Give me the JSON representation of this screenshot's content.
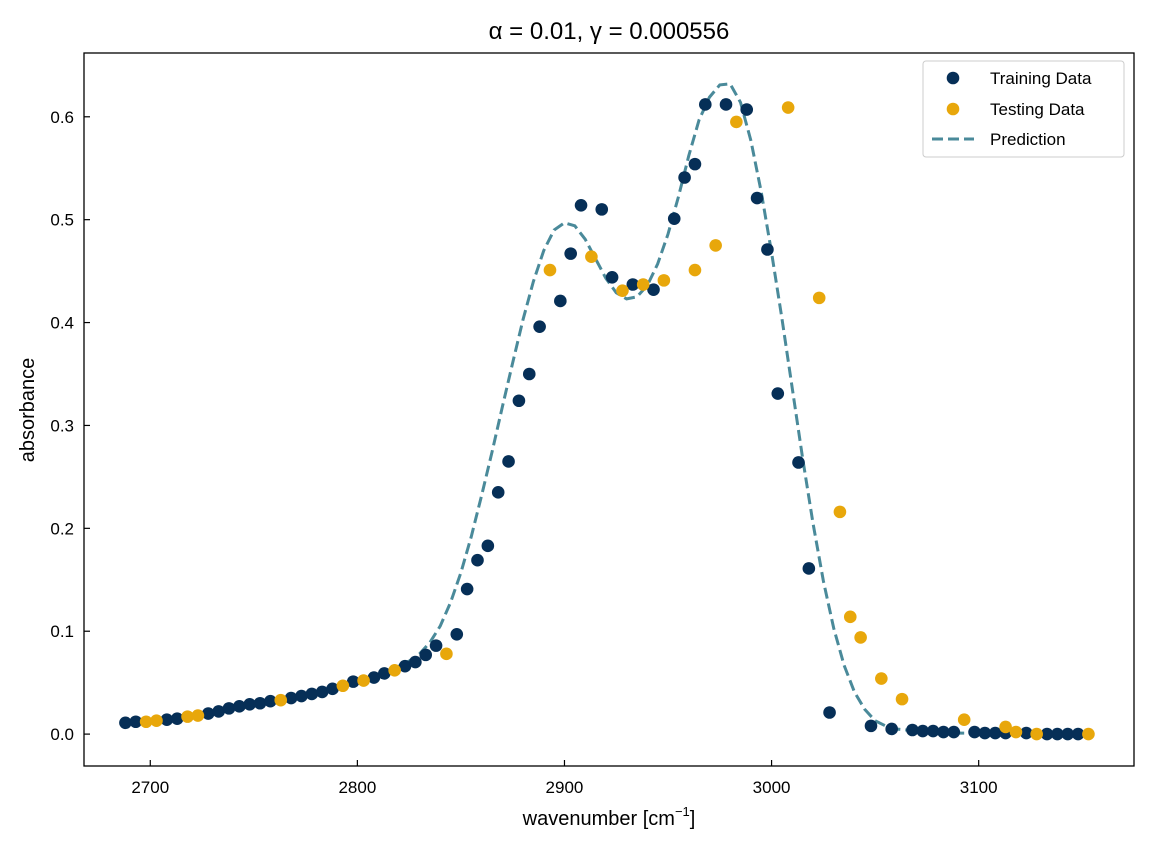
{
  "chart_data": {
    "type": "scatter",
    "title": "α = 0.01, γ = 0.000556",
    "xlabel": "wavenumber [cm",
    "xlabel_sup": "−1",
    "xlabel_suffix": "]",
    "ylabel": "absorbance",
    "xlim": [
      2668,
      3175
    ],
    "ylim": [
      -0.031,
      0.662
    ],
    "xticks": [
      2700,
      2800,
      2900,
      3000,
      3100
    ],
    "yticks": [
      0.0,
      0.1,
      0.2,
      0.3,
      0.4,
      0.5,
      0.6
    ],
    "ytick_labels": [
      "0.0",
      "0.1",
      "0.2",
      "0.3",
      "0.4",
      "0.5",
      "0.6"
    ],
    "grid": false,
    "legend_position": "top-right",
    "series": [
      {
        "name": "Training Data",
        "kind": "points",
        "color": "#062f57",
        "x": [
          2688,
          2693,
          2708,
          2713,
          2728,
          2733,
          2738,
          2743,
          2748,
          2753,
          2758,
          2768,
          2773,
          2778,
          2783,
          2788,
          2798,
          2808,
          2813,
          2823,
          2828,
          2833,
          2838,
          2848,
          2853,
          2858,
          2863,
          2868,
          2873,
          2878,
          2883,
          2888,
          2898,
          2903,
          2908,
          2918,
          2923,
          2933,
          2943,
          2953,
          2958,
          2963,
          2968,
          2978,
          2988,
          2993,
          2998,
          3003,
          3013,
          3018,
          3028,
          3048,
          3058,
          3068,
          3073,
          3078,
          3083,
          3088,
          3098,
          3103,
          3108,
          3113,
          3123,
          3133,
          3138,
          3143,
          3148
        ],
        "y": [
          0.011,
          0.012,
          0.014,
          0.015,
          0.02,
          0.022,
          0.025,
          0.027,
          0.029,
          0.03,
          0.032,
          0.035,
          0.037,
          0.039,
          0.041,
          0.044,
          0.051,
          0.055,
          0.059,
          0.066,
          0.07,
          0.077,
          0.086,
          0.097,
          0.141,
          0.169,
          0.183,
          0.235,
          0.265,
          0.324,
          0.35,
          0.396,
          0.421,
          0.467,
          0.514,
          0.51,
          0.444,
          0.437,
          0.432,
          0.501,
          0.541,
          0.554,
          0.612,
          0.612,
          0.607,
          0.521,
          0.471,
          0.331,
          0.264,
          0.161,
          0.021,
          0.008,
          0.005,
          0.004,
          0.003,
          0.003,
          0.002,
          0.002,
          0.002,
          0.001,
          0.001,
          0.001,
          0.001,
          0.0,
          0.0,
          0.0,
          0.0
        ]
      },
      {
        "name": "Testing Data",
        "kind": "points",
        "color": "#e8a70b",
        "x": [
          2698,
          2703,
          2718,
          2723,
          2763,
          2793,
          2803,
          2818,
          2843,
          2893,
          2913,
          2928,
          2938,
          2948,
          2963,
          2973,
          2983,
          3008,
          3023,
          3033,
          3038,
          3043,
          3053,
          3063,
          3093,
          3113,
          3118,
          3128,
          3153
        ],
        "y": [
          0.012,
          0.013,
          0.017,
          0.018,
          0.033,
          0.047,
          0.052,
          0.062,
          0.078,
          0.451,
          0.464,
          0.431,
          0.437,
          0.441,
          0.451,
          0.475,
          0.595,
          0.609,
          0.424,
          0.216,
          0.114,
          0.094,
          0.054,
          0.034,
          0.014,
          0.007,
          0.002,
          0.0,
          0.0
        ]
      },
      {
        "name": "Prediction",
        "kind": "line",
        "color": "#4a8a9a",
        "x": [
          2688,
          2700,
          2710,
          2720,
          2730,
          2740,
          2750,
          2760,
          2770,
          2780,
          2790,
          2800,
          2810,
          2820,
          2825,
          2830,
          2835,
          2840,
          2845,
          2850,
          2855,
          2860,
          2865,
          2870,
          2875,
          2880,
          2885,
          2890,
          2895,
          2900,
          2905,
          2910,
          2915,
          2920,
          2925,
          2930,
          2935,
          2940,
          2945,
          2950,
          2955,
          2960,
          2965,
          2970,
          2975,
          2980,
          2985,
          2990,
          2995,
          3000,
          3005,
          3010,
          3015,
          3020,
          3025,
          3030,
          3035,
          3040,
          3045,
          3050,
          3055,
          3060,
          3070,
          3080,
          3090,
          3100,
          3110,
          3120,
          3130,
          3140,
          3153
        ],
        "y": [
          0.011,
          0.012,
          0.015,
          0.017,
          0.02,
          0.024,
          0.028,
          0.032,
          0.036,
          0.041,
          0.046,
          0.052,
          0.058,
          0.066,
          0.071,
          0.078,
          0.089,
          0.105,
          0.128,
          0.157,
          0.192,
          0.232,
          0.274,
          0.318,
          0.361,
          0.403,
          0.44,
          0.47,
          0.49,
          0.497,
          0.494,
          0.481,
          0.462,
          0.443,
          0.429,
          0.423,
          0.425,
          0.436,
          0.457,
          0.486,
          0.522,
          0.562,
          0.597,
          0.619,
          0.631,
          0.632,
          0.614,
          0.577,
          0.527,
          0.468,
          0.404,
          0.336,
          0.268,
          0.205,
          0.149,
          0.103,
          0.067,
          0.041,
          0.024,
          0.013,
          0.008,
          0.005,
          0.003,
          0.002,
          0.001,
          0.001,
          0.0,
          0.0,
          0.0,
          0.0,
          0.0
        ]
      }
    ]
  }
}
